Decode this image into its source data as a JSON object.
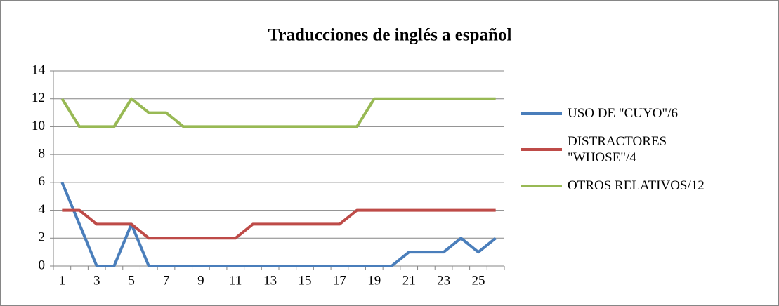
{
  "chart_data": {
    "type": "line",
    "title": "Traducciones de inglés a español",
    "categories": [
      "1",
      null,
      "3",
      null,
      "5",
      null,
      "7",
      null,
      "9",
      null,
      "11",
      null,
      "13",
      null,
      "15",
      null,
      "17",
      null,
      "19",
      null,
      "21",
      null,
      "23",
      null,
      "25",
      null
    ],
    "series": [
      {
        "name": "USO DE \"CUYO\"/6",
        "color": "#4a7ebb",
        "values": [
          6,
          3,
          0,
          0,
          3,
          0,
          0,
          0,
          0,
          0,
          0,
          0,
          0,
          0,
          0,
          0,
          0,
          0,
          0,
          0,
          1,
          1,
          1,
          2,
          1,
          2
        ]
      },
      {
        "name": "DISTRACTORES \"WHOSE\"/4",
        "color": "#be4b48",
        "values": [
          4,
          4,
          3,
          3,
          3,
          2,
          2,
          2,
          2,
          2,
          2,
          3,
          3,
          3,
          3,
          3,
          3,
          4,
          4,
          4,
          4,
          4,
          4,
          4,
          4,
          4
        ]
      },
      {
        "name": "OTROS RELATIVOS/12",
        "color": "#98b954",
        "values": [
          12,
          10,
          10,
          10,
          12,
          11,
          11,
          10,
          10,
          10,
          10,
          10,
          10,
          10,
          10,
          10,
          10,
          10,
          12,
          12,
          12,
          12,
          12,
          12,
          12,
          12
        ]
      }
    ],
    "ylim": [
      0,
      14
    ],
    "yticks": [
      0,
      2,
      4,
      6,
      8,
      10,
      12,
      14
    ],
    "grid": true,
    "legend": "right"
  }
}
